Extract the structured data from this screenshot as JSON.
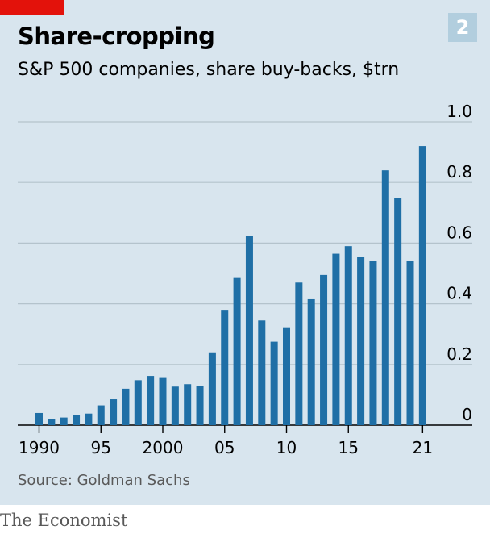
{
  "header": {
    "title": "Share-cropping",
    "subtitle": "S&P 500 companies, share buy-backs, $trn",
    "badge": "2"
  },
  "footer": {
    "source": "Source: Goldman Sachs",
    "brand": "The Economist"
  },
  "colors": {
    "bar": "#1f6fa6",
    "grid": "#b4c3cc",
    "background": "#d8e5ee",
    "accent": "#e3120b"
  },
  "chart_data": {
    "type": "bar",
    "title": "Share-cropping",
    "subtitle": "S&P 500 companies, share buy-backs, $trn",
    "x": [
      1990,
      1991,
      1992,
      1993,
      1994,
      1995,
      1996,
      1997,
      1998,
      1999,
      2000,
      2001,
      2002,
      2003,
      2004,
      2005,
      2006,
      2007,
      2008,
      2009,
      2010,
      2011,
      2012,
      2013,
      2014,
      2015,
      2016,
      2017,
      2018,
      2019,
      2020,
      2021
    ],
    "values": [
      0.04,
      0.02,
      0.025,
      0.032,
      0.038,
      0.065,
      0.085,
      0.12,
      0.148,
      0.162,
      0.158,
      0.127,
      0.135,
      0.13,
      0.24,
      0.38,
      0.485,
      0.625,
      0.345,
      0.275,
      0.32,
      0.47,
      0.415,
      0.495,
      0.565,
      0.59,
      0.555,
      0.54,
      0.84,
      0.75,
      0.54,
      0.92
    ],
    "xtick_labels": [
      "1990",
      "95",
      "2000",
      "05",
      "10",
      "15",
      "21"
    ],
    "xtick_values": [
      1990,
      1995,
      2000,
      2005,
      2010,
      2015,
      2021
    ],
    "ytick_labels": [
      "0",
      "0.2",
      "0.4",
      "0.6",
      "0.8",
      "1.0"
    ],
    "ytick_values": [
      0,
      0.2,
      0.4,
      0.6,
      0.8,
      1.0
    ],
    "ylim": [
      0,
      1.0
    ],
    "y_axis_side": "right",
    "grid": true,
    "xlabel": "",
    "ylabel": ""
  }
}
